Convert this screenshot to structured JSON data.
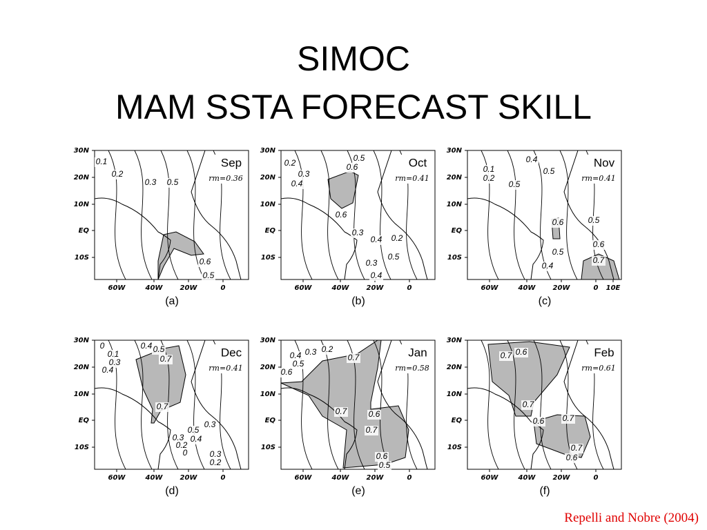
{
  "title": [
    "SIMOC",
    "MAM SSTA FORECAST SKILL"
  ],
  "panels": [
    {
      "month": "Sep",
      "rm": "rm=0.36",
      "label": "(a)",
      "yticks": [
        "30N",
        "20N",
        "10N",
        "EQ",
        "10S"
      ],
      "xticks": [
        "60W",
        "40W",
        "20W",
        "0"
      ],
      "contours": [
        "0.1",
        "0.2",
        "0.3",
        "0.5",
        "0.6",
        "0.5"
      ]
    },
    {
      "month": "Oct",
      "rm": "rm=0.41",
      "label": "(b)",
      "yticks": [
        "30N",
        "20N",
        "10N",
        "EQ",
        "10S"
      ],
      "xticks": [
        "60W",
        "40W",
        "20W",
        "0"
      ],
      "contours": [
        "0.2",
        "0.3",
        "0.4",
        "0.5",
        "0.6",
        "0.6",
        "0.3",
        "0.4",
        "0.2",
        "0.3",
        "0.5",
        "0.4"
      ]
    },
    {
      "month": "Nov",
      "rm": "rm=0.41",
      "label": "(c)",
      "yticks": [
        "30N",
        "20N",
        "10N",
        "EQ",
        "10S"
      ],
      "xticks": [
        "60W",
        "40W",
        "20W",
        "0",
        "10E"
      ],
      "contours": [
        "0.4",
        "0.1",
        "0.5",
        "0.2",
        "0.5",
        "0.6",
        "0.5",
        "0.6",
        "0.5",
        "0.7",
        "0.4"
      ]
    },
    {
      "month": "Dec",
      "rm": "rm=0.41",
      "label": "(d)",
      "yticks": [
        "30N",
        "20N",
        "10N",
        "EQ",
        "10S"
      ],
      "xticks": [
        "60W",
        "40W",
        "20W",
        "0"
      ],
      "contours": [
        "0",
        "0.4",
        "0.1",
        "0.5",
        "0.3",
        "0.7",
        "0.4",
        "0.7",
        "0.5",
        "0.3",
        "0.3",
        "0.4",
        "0.2",
        "0",
        "0.3",
        "0.2"
      ]
    },
    {
      "month": "Jan",
      "rm": "rm=0.58",
      "label": "(e)",
      "yticks": [
        "30N",
        "20N",
        "10N",
        "EQ",
        "10S"
      ],
      "xticks": [
        "60W",
        "40W",
        "20W",
        "0"
      ],
      "contours": [
        "0.4",
        "0.3",
        "0.2",
        "0.5",
        "0.6",
        "0.7",
        "0.7",
        "0.6",
        "0.7",
        "0.6",
        "0.5"
      ]
    },
    {
      "month": "Feb",
      "rm": "rm=0.61",
      "label": "(f)",
      "yticks": [
        "30N",
        "20N",
        "10N",
        "EQ",
        "10S"
      ],
      "xticks": [
        "60W",
        "40W",
        "20W",
        "0"
      ],
      "contours": [
        "0.7",
        "0.6",
        "0.7",
        "0.6",
        "0.7",
        "0.7",
        "0.6"
      ]
    }
  ],
  "citation": "Repelli and Nobre (2004)"
}
